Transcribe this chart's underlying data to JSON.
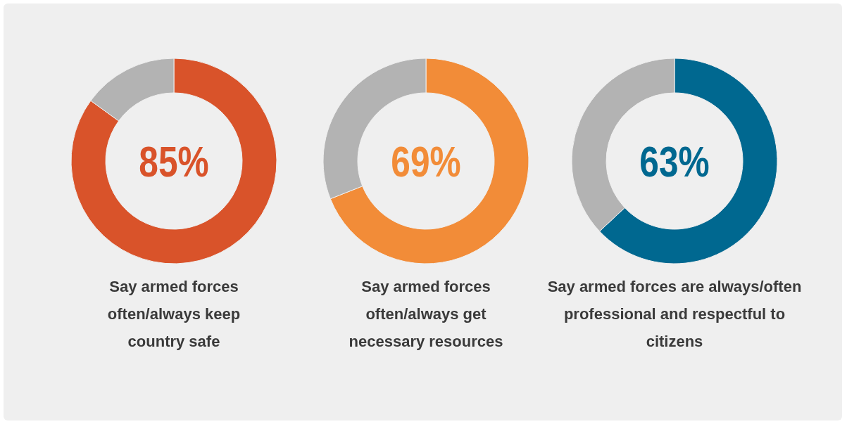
{
  "chart_data": [
    {
      "type": "donut",
      "title": "Say armed forces often/always keep country safe",
      "categories": [
        null,
        null
      ],
      "values": [
        85,
        15
      ],
      "colors": [
        "#d9532a",
        "#b3b3b3"
      ],
      "value_labels": [
        "85%",
        null
      ]
    },
    {
      "type": "donut",
      "title": "Say armed forces often/always get necessary resources",
      "categories": [
        null,
        null
      ],
      "values": [
        69,
        31
      ],
      "colors": [
        "#f28c38",
        "#b3b3b3"
      ],
      "value_labels": [
        "69%",
        null
      ]
    },
    {
      "type": "donut",
      "title": "Say armed forces are always/often professional and respectful to citizens",
      "categories": [
        null,
        null
      ],
      "values": [
        63,
        37
      ],
      "colors": [
        "#006890",
        "#b3b3b3"
      ],
      "value_labels": [
        "63%",
        null
      ]
    }
  ]
}
